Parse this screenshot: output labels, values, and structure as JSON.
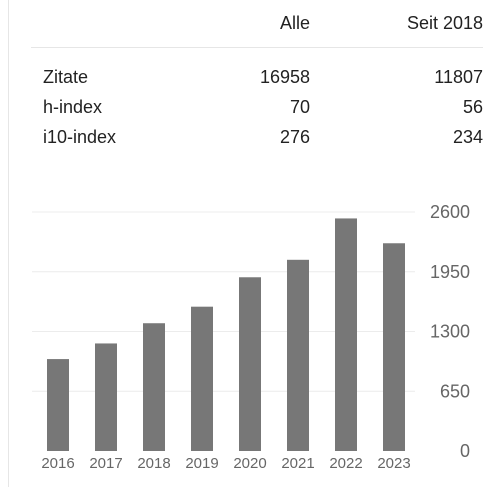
{
  "stats_table": {
    "headers": [
      "",
      "Alle",
      "Seit 2018"
    ],
    "rows": [
      {
        "metric": "Zitate",
        "all": "16958",
        "since": "11807"
      },
      {
        "metric": "h-index",
        "all": "70",
        "since": "56"
      },
      {
        "metric": "i10-index",
        "all": "276",
        "since": "234"
      }
    ]
  },
  "chart_data": {
    "type": "bar",
    "title": "",
    "xlabel": "",
    "ylabel": "",
    "categories": [
      "2016",
      "2017",
      "2018",
      "2019",
      "2020",
      "2021",
      "2022",
      "2023"
    ],
    "values": [
      1000,
      1170,
      1390,
      1570,
      1890,
      2080,
      2530,
      2260
    ],
    "ylim": [
      0,
      2600
    ],
    "yticks": [
      "2600",
      "1950",
      "1300",
      "650",
      "0"
    ],
    "ytick_values": [
      2600,
      1950,
      1300,
      650,
      0
    ],
    "y_axis_side": "right",
    "grid": true,
    "bar_color": "#777777",
    "grid_color": "#ececec"
  }
}
